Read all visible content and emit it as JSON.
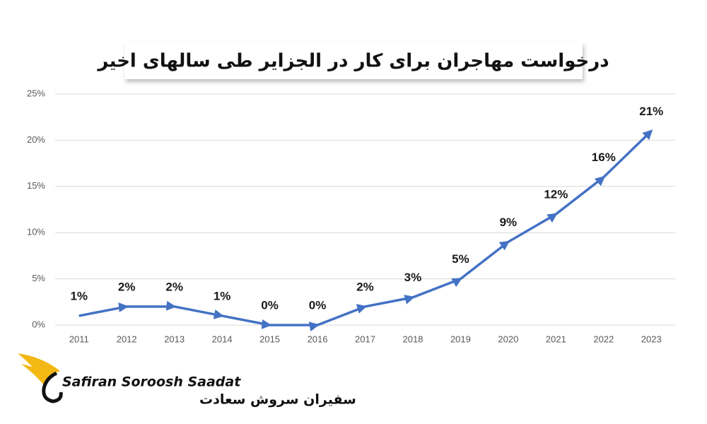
{
  "chart_data": {
    "type": "line",
    "title": "درخواست مهاجران برای کار در الجزایر طی سالهای اخیر",
    "categories": [
      "2011",
      "2012",
      "2013",
      "2014",
      "2015",
      "2016",
      "2017",
      "2018",
      "2019",
      "2020",
      "2021",
      "2022",
      "2023"
    ],
    "series": [
      {
        "color": "#4472c4",
        "values": [
          1,
          2,
          2,
          1,
          0,
          0,
          2,
          3,
          5,
          9,
          12,
          16,
          21
        ],
        "value_labels": [
          "1%",
          "2%",
          "2%",
          "1%",
          "0%",
          "0%",
          "2%",
          "3%",
          "5%",
          "9%",
          "12%",
          "16%",
          "21%"
        ]
      }
    ],
    "ylim": [
      0,
      25
    ],
    "yticks": [
      {
        "value": 0,
        "label": "0%"
      },
      {
        "value": 5,
        "label": "5%"
      },
      {
        "value": 10,
        "label": "10%"
      },
      {
        "value": 15,
        "label": "15%"
      },
      {
        "value": 20,
        "label": "20%"
      },
      {
        "value": 25,
        "label": "25%"
      }
    ],
    "grid": true
  },
  "logo": {
    "name_en": "Safiran Soroosh Saadat",
    "name_fa": "سفیران سروش سعادت"
  }
}
